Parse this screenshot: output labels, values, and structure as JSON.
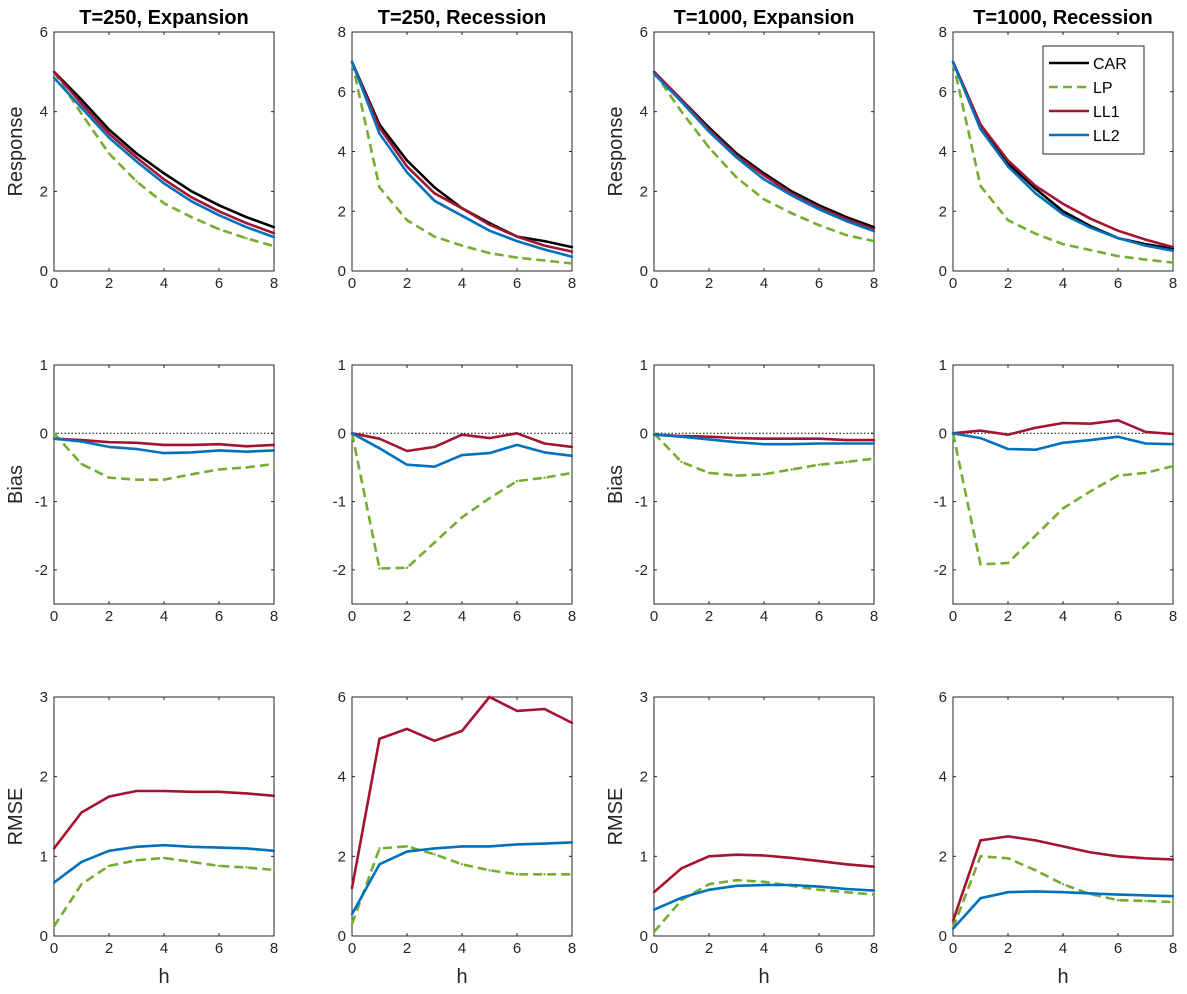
{
  "colors": {
    "CAR": "#000000",
    "LP": "#77AC30",
    "LL1": "#A2142F",
    "LL2": "#0072BD"
  },
  "legend": {
    "placement": "top-right",
    "panel": "T=1000, Recession / Response",
    "entries": [
      {
        "name": "CAR",
        "dashed": false
      },
      {
        "name": "LP",
        "dashed": true
      },
      {
        "name": "LL1",
        "dashed": false
      },
      {
        "name": "LL2",
        "dashed": false
      }
    ]
  },
  "chart_data": [
    {
      "type": "line",
      "title": "T=250, Expansion",
      "xlabel": "",
      "ylabel": "Response",
      "xlim": [
        0,
        8
      ],
      "ylim": [
        0,
        6
      ],
      "xticks": [
        0,
        2,
        4,
        6,
        8
      ],
      "yticks": [
        0,
        2,
        4,
        6
      ],
      "zero_line": false,
      "x": [
        0,
        1,
        2,
        3,
        4,
        5,
        6,
        7,
        8
      ],
      "series": [
        {
          "name": "CAR",
          "values": [
            5.0,
            4.3,
            3.55,
            2.95,
            2.45,
            2.0,
            1.65,
            1.35,
            1.1
          ]
        },
        {
          "name": "LP",
          "values": [
            5.0,
            3.95,
            2.95,
            2.25,
            1.7,
            1.35,
            1.05,
            0.82,
            0.62
          ]
        },
        {
          "name": "LL1",
          "values": [
            5.0,
            4.2,
            3.45,
            2.85,
            2.3,
            1.85,
            1.5,
            1.2,
            0.95
          ]
        },
        {
          "name": "LL2",
          "values": [
            4.85,
            4.1,
            3.35,
            2.75,
            2.2,
            1.75,
            1.4,
            1.1,
            0.85
          ]
        }
      ]
    },
    {
      "type": "line",
      "title": "T=250, Recession",
      "xlabel": "",
      "ylabel": "",
      "xlim": [
        0,
        8
      ],
      "ylim": [
        0,
        8
      ],
      "xticks": [
        0,
        2,
        4,
        6,
        8
      ],
      "yticks": [
        0,
        2,
        4,
        6,
        8
      ],
      "zero_line": false,
      "x": [
        0,
        1,
        2,
        3,
        4,
        5,
        6,
        7,
        8
      ],
      "series": [
        {
          "name": "CAR",
          "values": [
            7.0,
            4.9,
            3.7,
            2.8,
            2.1,
            1.6,
            1.15,
            1.0,
            0.8
          ]
        },
        {
          "name": "LP",
          "values": [
            7.0,
            2.8,
            1.7,
            1.15,
            0.85,
            0.6,
            0.45,
            0.35,
            0.25
          ]
        },
        {
          "name": "LL1",
          "values": [
            7.0,
            4.8,
            3.5,
            2.6,
            2.1,
            1.55,
            1.15,
            0.85,
            0.65
          ]
        },
        {
          "name": "LL2",
          "values": [
            7.0,
            4.6,
            3.3,
            2.35,
            1.85,
            1.35,
            1.0,
            0.72,
            0.48
          ]
        }
      ]
    },
    {
      "type": "line",
      "title": "T=1000, Expansion",
      "xlabel": "",
      "ylabel": "Response",
      "xlim": [
        0,
        8
      ],
      "ylim": [
        0,
        6
      ],
      "xticks": [
        0,
        2,
        4,
        6,
        8
      ],
      "yticks": [
        0,
        2,
        4,
        6
      ],
      "zero_line": false,
      "x": [
        0,
        1,
        2,
        3,
        4,
        5,
        6,
        7,
        8
      ],
      "series": [
        {
          "name": "CAR",
          "values": [
            5.0,
            4.3,
            3.6,
            2.95,
            2.45,
            2.0,
            1.65,
            1.35,
            1.1
          ]
        },
        {
          "name": "LP",
          "values": [
            5.0,
            4.0,
            3.1,
            2.35,
            1.8,
            1.45,
            1.15,
            0.9,
            0.75
          ]
        },
        {
          "name": "LL1",
          "values": [
            5.0,
            4.3,
            3.55,
            2.9,
            2.4,
            1.95,
            1.6,
            1.3,
            1.05
          ]
        },
        {
          "name": "LL2",
          "values": [
            4.95,
            4.25,
            3.5,
            2.85,
            2.3,
            1.9,
            1.55,
            1.25,
            1.0
          ]
        }
      ]
    },
    {
      "type": "line",
      "title": "T=1000, Recession",
      "xlabel": "",
      "ylabel": "",
      "xlim": [
        0,
        8
      ],
      "ylim": [
        0,
        8
      ],
      "xticks": [
        0,
        2,
        4,
        6,
        8
      ],
      "yticks": [
        0,
        2,
        4,
        6,
        8
      ],
      "zero_line": false,
      "x": [
        0,
        1,
        2,
        3,
        4,
        5,
        6,
        7,
        8
      ],
      "series": [
        {
          "name": "CAR",
          "values": [
            7.0,
            4.9,
            3.6,
            2.75,
            2.0,
            1.5,
            1.1,
            0.9,
            0.75
          ]
        },
        {
          "name": "LP",
          "values": [
            7.0,
            2.85,
            1.7,
            1.25,
            0.9,
            0.7,
            0.5,
            0.38,
            0.28
          ]
        },
        {
          "name": "LL1",
          "values": [
            7.0,
            4.9,
            3.7,
            2.85,
            2.25,
            1.75,
            1.35,
            1.05,
            0.8
          ]
        },
        {
          "name": "LL2",
          "values": [
            7.0,
            4.75,
            3.5,
            2.6,
            1.9,
            1.45,
            1.1,
            0.85,
            0.68
          ]
        }
      ]
    },
    {
      "type": "line",
      "title": "",
      "xlabel": "",
      "ylabel": "Bias",
      "xlim": [
        0,
        8
      ],
      "ylim": [
        -2.5,
        1
      ],
      "xticks": [
        0,
        2,
        4,
        6,
        8
      ],
      "yticks": [
        -2,
        -1,
        0,
        1
      ],
      "zero_line": true,
      "x": [
        0,
        1,
        2,
        3,
        4,
        5,
        6,
        7,
        8
      ],
      "series": [
        {
          "name": "LP",
          "values": [
            0,
            -0.45,
            -0.65,
            -0.68,
            -0.68,
            -0.6,
            -0.53,
            -0.5,
            -0.45
          ]
        },
        {
          "name": "LL1",
          "values": [
            -0.08,
            -0.1,
            -0.13,
            -0.14,
            -0.17,
            -0.17,
            -0.16,
            -0.19,
            -0.17
          ]
        },
        {
          "name": "LL2",
          "values": [
            -0.08,
            -0.12,
            -0.2,
            -0.23,
            -0.29,
            -0.28,
            -0.25,
            -0.27,
            -0.25
          ]
        }
      ]
    },
    {
      "type": "line",
      "title": "",
      "xlabel": "",
      "ylabel": "",
      "xlim": [
        0,
        8
      ],
      "ylim": [
        -2.5,
        1
      ],
      "xticks": [
        0,
        2,
        4,
        6,
        8
      ],
      "yticks": [
        -2,
        -1,
        0,
        1
      ],
      "zero_line": true,
      "x": [
        0,
        1,
        2,
        3,
        4,
        5,
        6,
        7,
        8
      ],
      "series": [
        {
          "name": "LP",
          "values": [
            0,
            -1.98,
            -1.97,
            -1.6,
            -1.23,
            -0.95,
            -0.7,
            -0.65,
            -0.58
          ]
        },
        {
          "name": "LL1",
          "values": [
            0,
            -0.08,
            -0.26,
            -0.2,
            -0.02,
            -0.07,
            0,
            -0.15,
            -0.2
          ]
        },
        {
          "name": "LL2",
          "values": [
            0,
            -0.22,
            -0.46,
            -0.49,
            -0.32,
            -0.29,
            -0.17,
            -0.28,
            -0.33
          ]
        }
      ]
    },
    {
      "type": "line",
      "title": "",
      "xlabel": "",
      "ylabel": "Bias",
      "xlim": [
        0,
        8
      ],
      "ylim": [
        -2.5,
        1
      ],
      "xticks": [
        0,
        2,
        4,
        6,
        8
      ],
      "yticks": [
        -2,
        -1,
        0,
        1
      ],
      "zero_line": true,
      "x": [
        0,
        1,
        2,
        3,
        4,
        5,
        6,
        7,
        8
      ],
      "series": [
        {
          "name": "LP",
          "values": [
            0,
            -0.42,
            -0.58,
            -0.62,
            -0.6,
            -0.53,
            -0.46,
            -0.42,
            -0.37
          ]
        },
        {
          "name": "LL1",
          "values": [
            -0.02,
            -0.04,
            -0.05,
            -0.07,
            -0.08,
            -0.08,
            -0.08,
            -0.1,
            -0.1
          ]
        },
        {
          "name": "LL2",
          "values": [
            -0.02,
            -0.05,
            -0.09,
            -0.13,
            -0.16,
            -0.16,
            -0.15,
            -0.15,
            -0.15
          ]
        }
      ]
    },
    {
      "type": "line",
      "title": "",
      "xlabel": "",
      "ylabel": "",
      "xlim": [
        0,
        8
      ],
      "ylim": [
        -2.5,
        1
      ],
      "xticks": [
        0,
        2,
        4,
        6,
        8
      ],
      "yticks": [
        -2,
        -1,
        0,
        1
      ],
      "zero_line": true,
      "x": [
        0,
        1,
        2,
        3,
        4,
        5,
        6,
        7,
        8
      ],
      "series": [
        {
          "name": "LP",
          "values": [
            0,
            -1.92,
            -1.9,
            -1.5,
            -1.1,
            -0.85,
            -0.62,
            -0.58,
            -0.48
          ]
        },
        {
          "name": "LL1",
          "values": [
            0,
            0.04,
            -0.02,
            0.08,
            0.15,
            0.14,
            0.19,
            0.02,
            -0.01
          ]
        },
        {
          "name": "LL2",
          "values": [
            0,
            -0.07,
            -0.23,
            -0.24,
            -0.14,
            -0.1,
            -0.05,
            -0.15,
            -0.16
          ]
        }
      ]
    },
    {
      "type": "line",
      "title": "",
      "xlabel": "h",
      "ylabel": "RMSE",
      "xlim": [
        0,
        8
      ],
      "ylim": [
        0,
        3
      ],
      "xticks": [
        0,
        2,
        4,
        6,
        8
      ],
      "yticks": [
        0,
        1,
        2,
        3
      ],
      "zero_line": false,
      "x": [
        0,
        1,
        2,
        3,
        4,
        5,
        6,
        7,
        8
      ],
      "series": [
        {
          "name": "LP",
          "values": [
            0.12,
            0.65,
            0.88,
            0.95,
            0.98,
            0.93,
            0.88,
            0.86,
            0.83
          ]
        },
        {
          "name": "LL1",
          "values": [
            1.1,
            1.55,
            1.75,
            1.82,
            1.82,
            1.81,
            1.81,
            1.79,
            1.76
          ]
        },
        {
          "name": "LL2",
          "values": [
            0.67,
            0.93,
            1.07,
            1.12,
            1.14,
            1.12,
            1.11,
            1.1,
            1.07
          ]
        }
      ]
    },
    {
      "type": "line",
      "title": "",
      "xlabel": "h",
      "ylabel": "",
      "xlim": [
        0,
        8
      ],
      "ylim": [
        0,
        6
      ],
      "xticks": [
        0,
        2,
        4,
        6,
        8
      ],
      "yticks": [
        0,
        2,
        4,
        6
      ],
      "zero_line": false,
      "x": [
        0,
        1,
        2,
        3,
        4,
        5,
        6,
        7,
        8
      ],
      "series": [
        {
          "name": "LP",
          "values": [
            0.3,
            2.2,
            2.25,
            2.05,
            1.8,
            1.65,
            1.55,
            1.55,
            1.55
          ]
        },
        {
          "name": "LL1",
          "values": [
            1.2,
            4.95,
            5.2,
            4.9,
            5.15,
            6.0,
            5.65,
            5.7,
            5.35
          ]
        },
        {
          "name": "LL2",
          "values": [
            0.55,
            1.8,
            2.12,
            2.2,
            2.25,
            2.25,
            2.3,
            2.32,
            2.35
          ]
        }
      ]
    },
    {
      "type": "line",
      "title": "",
      "xlabel": "h",
      "ylabel": "RMSE",
      "xlim": [
        0,
        8
      ],
      "ylim": [
        0,
        3
      ],
      "xticks": [
        0,
        2,
        4,
        6,
        8
      ],
      "yticks": [
        0,
        1,
        2,
        3
      ],
      "zero_line": false,
      "x": [
        0,
        1,
        2,
        3,
        4,
        5,
        6,
        7,
        8
      ],
      "series": [
        {
          "name": "LP",
          "values": [
            0.05,
            0.45,
            0.65,
            0.7,
            0.68,
            0.63,
            0.58,
            0.55,
            0.52
          ]
        },
        {
          "name": "LL1",
          "values": [
            0.55,
            0.85,
            1.0,
            1.02,
            1.01,
            0.98,
            0.94,
            0.9,
            0.87
          ]
        },
        {
          "name": "LL2",
          "values": [
            0.33,
            0.48,
            0.58,
            0.63,
            0.64,
            0.64,
            0.62,
            0.59,
            0.57
          ]
        }
      ]
    },
    {
      "type": "line",
      "title": "",
      "xlabel": "h",
      "ylabel": "",
      "xlim": [
        0,
        8
      ],
      "ylim": [
        0,
        6
      ],
      "xticks": [
        0,
        2,
        4,
        6,
        8
      ],
      "yticks": [
        0,
        2,
        4,
        6
      ],
      "zero_line": false,
      "x": [
        0,
        1,
        2,
        3,
        4,
        5,
        6,
        7,
        8
      ],
      "series": [
        {
          "name": "LP",
          "values": [
            0.2,
            2.0,
            1.95,
            1.65,
            1.3,
            1.05,
            0.9,
            0.88,
            0.85
          ]
        },
        {
          "name": "LL1",
          "values": [
            0.38,
            2.4,
            2.5,
            2.4,
            2.25,
            2.1,
            2.0,
            1.95,
            1.92
          ]
        },
        {
          "name": "LL2",
          "values": [
            0.18,
            0.95,
            1.1,
            1.12,
            1.1,
            1.07,
            1.04,
            1.02,
            1.0
          ]
        }
      ]
    }
  ]
}
